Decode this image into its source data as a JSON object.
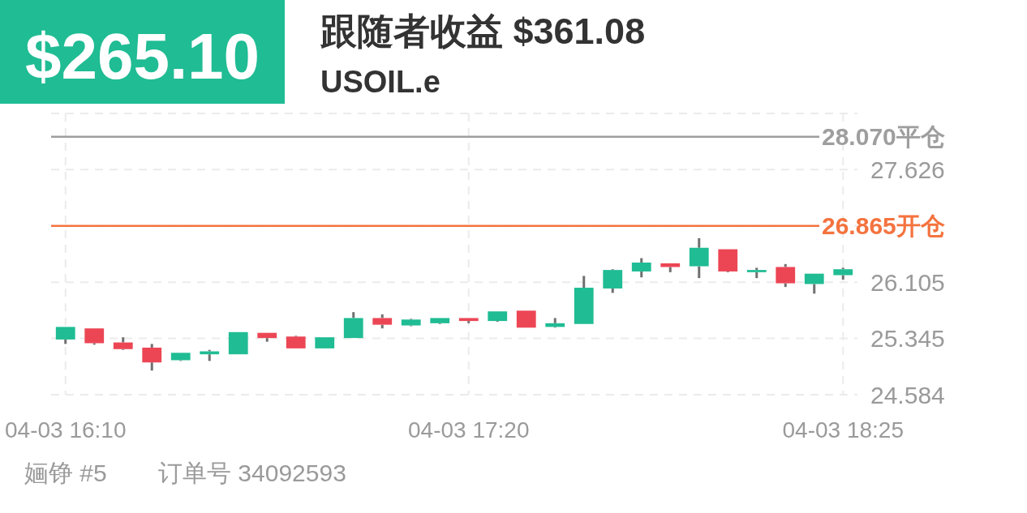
{
  "chart_data": {
    "type": "candlestick",
    "title": "跟随者收益 $361.08",
    "subtitle": "USOIL.e",
    "annotations": [
      "$265.10",
      "婳铮 #5",
      "订单号 34092593"
    ],
    "categories": [
      "04-03 16:10",
      null,
      null,
      null,
      null,
      null,
      null,
      null,
      null,
      null,
      null,
      null,
      null,
      null,
      "04-03 17:20",
      null,
      null,
      null,
      null,
      null,
      null,
      null,
      null,
      null,
      null,
      null,
      null,
      "04-03 18:25"
    ],
    "ohlc": [
      [
        25.33,
        25.5,
        25.27,
        25.5
      ],
      [
        25.48,
        25.48,
        25.26,
        25.28
      ],
      [
        25.29,
        25.36,
        25.19,
        25.2
      ],
      [
        25.22,
        25.27,
        24.91,
        25.02
      ],
      [
        25.05,
        25.15,
        25.04,
        25.15
      ],
      [
        25.13,
        25.19,
        25.04,
        25.17
      ],
      [
        25.13,
        25.43,
        25.13,
        25.43
      ],
      [
        25.42,
        25.42,
        25.3,
        25.35
      ],
      [
        25.37,
        25.38,
        25.21,
        25.21
      ],
      [
        25.21,
        25.36,
        25.21,
        25.36
      ],
      [
        25.35,
        25.7,
        25.35,
        25.62
      ],
      [
        25.62,
        25.67,
        25.48,
        25.53
      ],
      [
        25.52,
        25.61,
        25.51,
        25.6
      ],
      [
        25.55,
        25.62,
        25.54,
        25.62
      ],
      [
        25.62,
        25.62,
        25.55,
        25.58
      ],
      [
        25.58,
        25.71,
        25.57,
        25.71
      ],
      [
        25.72,
        25.72,
        25.49,
        25.49
      ],
      [
        25.5,
        25.62,
        25.49,
        25.55
      ],
      [
        25.54,
        26.19,
        25.54,
        26.03
      ],
      [
        26.02,
        26.28,
        25.96,
        26.27
      ],
      [
        26.25,
        26.43,
        26.17,
        26.37
      ],
      [
        26.36,
        26.36,
        26.24,
        26.31
      ],
      [
        26.32,
        26.7,
        26.16,
        26.57
      ],
      [
        26.55,
        26.55,
        26.24,
        26.25
      ],
      [
        26.24,
        26.3,
        26.16,
        26.27
      ],
      [
        26.31,
        26.35,
        26.04,
        26.09
      ],
      [
        26.08,
        26.22,
        25.95,
        26.22
      ],
      [
        26.2,
        26.3,
        26.14,
        26.28
      ]
    ],
    "colors": [
      "#20bc94",
      "#ec4655",
      "#ec4655",
      "#ec4655",
      "#20bc94",
      "#20bc94",
      "#20bc94",
      "#ec4655",
      "#ec4655",
      "#20bc94",
      "#20bc94",
      "#ec4655",
      "#20bc94",
      "#20bc94",
      "#ec4655",
      "#20bc94",
      "#ec4655",
      "#20bc94",
      "#20bc94",
      "#20bc94",
      "#20bc94",
      "#ec4655",
      "#20bc94",
      "#ec4655",
      "#20bc94",
      "#ec4655",
      "#20bc94",
      "#20bc94"
    ],
    "ylim": [
      24.584,
      28.386
    ],
    "yticks": [
      24.584,
      25.345,
      26.105,
      {
        "value": 26.865,
        "label": null
      },
      27.626,
      {
        "value": 28.386,
        "label": null
      }
    ],
    "grid": true,
    "ref_lines": [
      {
        "axis": "y",
        "value": 28.07,
        "label": "28.070平仓",
        "color": "#9e9e9e"
      },
      {
        "axis": "y",
        "value": 26.865,
        "label": "26.865开仓",
        "color": "#f4733f"
      }
    ]
  }
}
